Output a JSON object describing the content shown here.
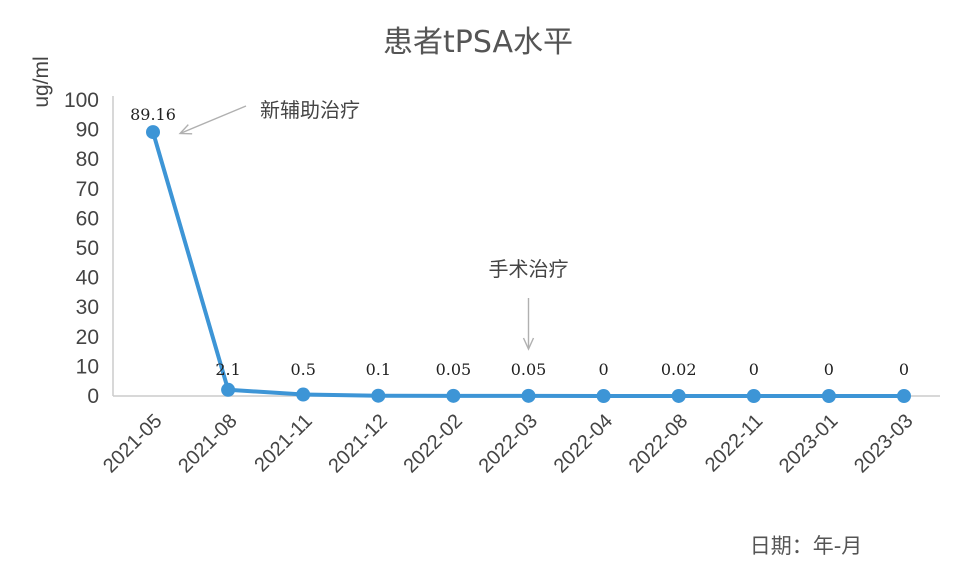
{
  "chart_data": {
    "type": "line",
    "title": "患者tPSA水平",
    "xlabel": "日期：年-月",
    "ylabel": "ug/ml",
    "ylim": [
      0,
      100
    ],
    "yticks": [
      0,
      10,
      20,
      30,
      40,
      50,
      60,
      70,
      80,
      90,
      100
    ],
    "categories": [
      "2021-05",
      "2021-08",
      "2021-11",
      "2021-12",
      "2022-02",
      "2022-03",
      "2022-04",
      "2022-08",
      "2022-11",
      "2023-01",
      "2023-03"
    ],
    "values": [
      89.16,
      2.1,
      0.5,
      0.1,
      0.05,
      0.05,
      0,
      0.02,
      0,
      0,
      0
    ],
    "data_labels": [
      "89.16",
      "2.1",
      "0.5",
      "0.1",
      "0.05",
      "0.05",
      "0",
      "0.02",
      "0",
      "0",
      "0"
    ],
    "series_color": "#3d95d6",
    "grid": false,
    "legend": "none",
    "annotations": [
      {
        "text": "新辅助治疗",
        "target_index": 0
      },
      {
        "text": "手术治疗",
        "target_index": 5
      }
    ]
  }
}
